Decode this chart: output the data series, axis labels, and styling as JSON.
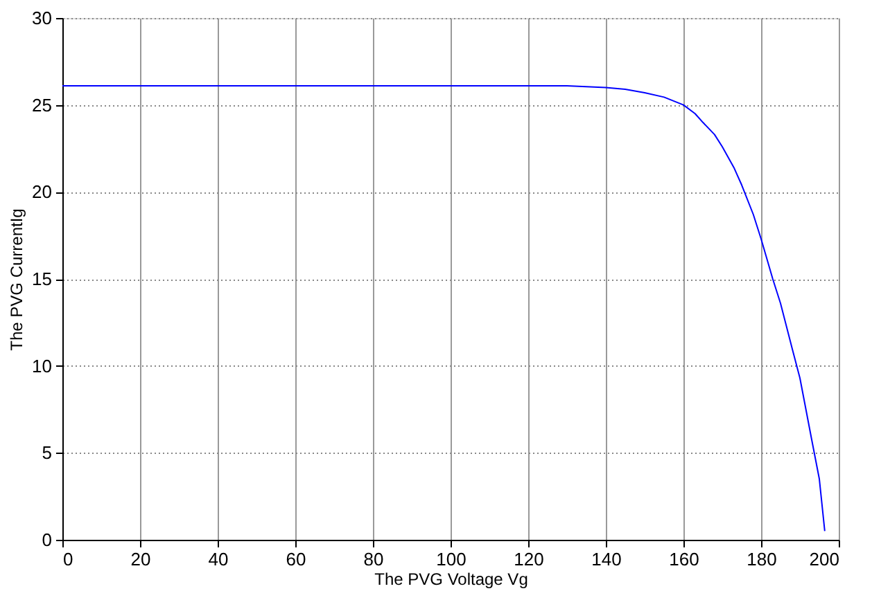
{
  "chart_data": {
    "type": "line",
    "xlabel": "The PVG Voltage Vg",
    "ylabel": "The PVG CurrentIg",
    "x": [
      0,
      20,
      40,
      60,
      80,
      100,
      120,
      130,
      135,
      140,
      145,
      150,
      155,
      160,
      163,
      165,
      168,
      170,
      173,
      175,
      178,
      180,
      183,
      185,
      188,
      190,
      193,
      195,
      196.4
    ],
    "series": [
      {
        "color": "#0000ff",
        "values": [
          26.1,
          26.1,
          26.1,
          26.1,
          26.1,
          26.1,
          26.1,
          26.1,
          26.05,
          26.0,
          25.9,
          25.7,
          25.45,
          25.0,
          24.5,
          24.0,
          23.3,
          22.6,
          21.4,
          20.4,
          18.7,
          17.3,
          15.0,
          13.6,
          11.0,
          9.3,
          5.8,
          3.5,
          0.5
        ]
      }
    ],
    "xlim": [
      0,
      200
    ],
    "ylim": [
      0,
      30
    ],
    "xticks": [
      0,
      20,
      40,
      60,
      80,
      100,
      120,
      140,
      160,
      180,
      200
    ],
    "yticks": [
      0,
      5,
      10,
      15,
      20,
      25,
      30
    ],
    "grid": true,
    "marker": "none",
    "line_style": "solid"
  }
}
